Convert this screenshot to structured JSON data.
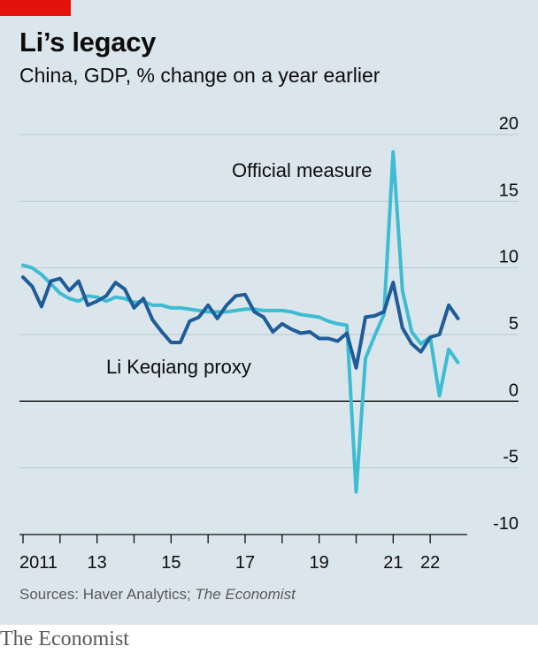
{
  "header": {
    "title": "Li’s legacy",
    "subtitle": "China, GDP, % change on a year earlier"
  },
  "footer": {
    "source_prefix": "Sources: Haver Analytics; ",
    "source_italic": "The Economist",
    "brand": "The Economist"
  },
  "colors": {
    "official": "#3ebcd2",
    "proxy": "#1f5c99",
    "accent_tag": "#e3120b",
    "background": "#dbe6ec"
  },
  "chart_data": {
    "type": "line",
    "title": "Li’s legacy",
    "subtitle": "China, GDP, % change on a year earlier",
    "ylim": [
      -10,
      20
    ],
    "y_ticks": [
      20,
      15,
      10,
      5,
      0,
      -5,
      -10
    ],
    "y_tick_labels": [
      "20",
      "15",
      "10",
      "5",
      "0",
      "-5",
      "-10"
    ],
    "xlim": [
      2011,
      2023
    ],
    "x_ticks": [
      2011,
      2012,
      2013,
      2014,
      2015,
      2016,
      2017,
      2018,
      2019,
      2020,
      2021,
      2022
    ],
    "x_tick_labels": [
      {
        "x": 2011,
        "label": "2011"
      },
      {
        "x": 2013,
        "label": "13"
      },
      {
        "x": 2015,
        "label": "15"
      },
      {
        "x": 2017,
        "label": "17"
      },
      {
        "x": 2019,
        "label": "19"
      },
      {
        "x": 2021,
        "label": "21"
      },
      {
        "x": 2022,
        "label": "22"
      }
    ],
    "axis_position": "right",
    "grid": true,
    "series": [
      {
        "name": "Official measure",
        "color_key": "official",
        "points": [
          [
            2011.0,
            10.2
          ],
          [
            2011.25,
            10.0
          ],
          [
            2011.5,
            9.5
          ],
          [
            2011.75,
            8.8
          ],
          [
            2012.0,
            8.1
          ],
          [
            2012.25,
            7.7
          ],
          [
            2012.5,
            7.5
          ],
          [
            2012.75,
            7.9
          ],
          [
            2013.0,
            7.8
          ],
          [
            2013.25,
            7.5
          ],
          [
            2013.5,
            7.8
          ],
          [
            2013.75,
            7.7
          ],
          [
            2014.0,
            7.4
          ],
          [
            2014.25,
            7.5
          ],
          [
            2014.5,
            7.2
          ],
          [
            2014.75,
            7.2
          ],
          [
            2015.0,
            7.0
          ],
          [
            2015.25,
            7.0
          ],
          [
            2015.5,
            6.9
          ],
          [
            2015.75,
            6.8
          ],
          [
            2016.0,
            6.7
          ],
          [
            2016.25,
            6.7
          ],
          [
            2016.5,
            6.7
          ],
          [
            2016.75,
            6.8
          ],
          [
            2017.0,
            6.9
          ],
          [
            2017.25,
            6.9
          ],
          [
            2017.5,
            6.8
          ],
          [
            2017.75,
            6.8
          ],
          [
            2018.0,
            6.8
          ],
          [
            2018.25,
            6.7
          ],
          [
            2018.5,
            6.5
          ],
          [
            2018.75,
            6.4
          ],
          [
            2019.0,
            6.3
          ],
          [
            2019.25,
            6.0
          ],
          [
            2019.5,
            5.8
          ],
          [
            2019.75,
            5.7
          ],
          [
            2020.0,
            -6.8
          ],
          [
            2020.25,
            3.2
          ],
          [
            2020.5,
            4.9
          ],
          [
            2020.75,
            6.5
          ],
          [
            2021.0,
            18.7
          ],
          [
            2021.25,
            8.3
          ],
          [
            2021.5,
            5.2
          ],
          [
            2021.75,
            4.3
          ],
          [
            2022.0,
            4.8
          ],
          [
            2022.25,
            0.4
          ],
          [
            2022.5,
            3.9
          ],
          [
            2022.75,
            2.9
          ]
        ]
      },
      {
        "name": "Li Keqiang proxy",
        "color_key": "proxy",
        "points": [
          [
            2011.0,
            9.3
          ],
          [
            2011.25,
            8.6
          ],
          [
            2011.5,
            7.1
          ],
          [
            2011.75,
            9.0
          ],
          [
            2012.0,
            9.2
          ],
          [
            2012.25,
            8.3
          ],
          [
            2012.5,
            9.0
          ],
          [
            2012.75,
            7.2
          ],
          [
            2013.0,
            7.5
          ],
          [
            2013.25,
            7.9
          ],
          [
            2013.5,
            8.9
          ],
          [
            2013.75,
            8.4
          ],
          [
            2014.0,
            7.0
          ],
          [
            2014.25,
            7.7
          ],
          [
            2014.5,
            6.1
          ],
          [
            2014.75,
            5.2
          ],
          [
            2015.0,
            4.4
          ],
          [
            2015.25,
            4.4
          ],
          [
            2015.5,
            6.0
          ],
          [
            2015.75,
            6.3
          ],
          [
            2016.0,
            7.2
          ],
          [
            2016.25,
            6.2
          ],
          [
            2016.5,
            7.2
          ],
          [
            2016.75,
            7.9
          ],
          [
            2017.0,
            8.0
          ],
          [
            2017.25,
            6.7
          ],
          [
            2017.5,
            6.3
          ],
          [
            2017.75,
            5.2
          ],
          [
            2018.0,
            5.8
          ],
          [
            2018.25,
            5.4
          ],
          [
            2018.5,
            5.1
          ],
          [
            2018.75,
            5.2
          ],
          [
            2019.0,
            4.7
          ],
          [
            2019.25,
            4.7
          ],
          [
            2019.5,
            4.5
          ],
          [
            2019.75,
            5.1
          ],
          [
            2020.0,
            2.5
          ],
          [
            2020.25,
            6.3
          ],
          [
            2020.5,
            6.4
          ],
          [
            2020.75,
            6.7
          ],
          [
            2021.0,
            8.9
          ],
          [
            2021.25,
            5.5
          ],
          [
            2021.5,
            4.3
          ],
          [
            2021.75,
            3.7
          ],
          [
            2022.0,
            4.8
          ],
          [
            2022.25,
            5.0
          ],
          [
            2022.5,
            7.2
          ],
          [
            2022.75,
            6.2
          ]
        ]
      }
    ],
    "annotations": [
      {
        "text": "Official measure",
        "series": "Official measure"
      },
      {
        "text": "Li Keqiang proxy",
        "series": "Li Keqiang proxy"
      }
    ]
  }
}
